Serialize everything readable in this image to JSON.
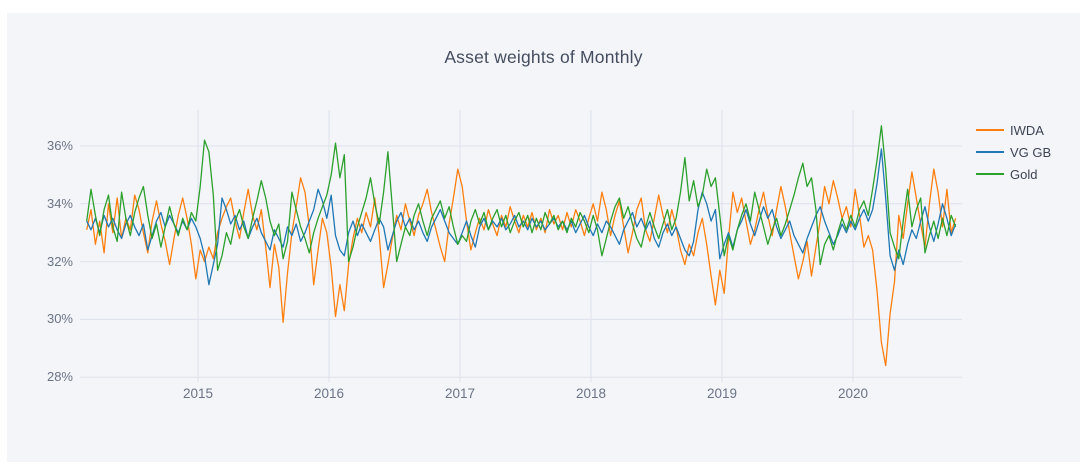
{
  "canvas": {
    "page_bg": "#ffffff",
    "card_bg": "#f3f5f9"
  },
  "chart_data": {
    "type": "line",
    "title": "Asset weights of Monthly",
    "grid": true,
    "legend_position": "right",
    "colors": {
      "grid": "#dee2ea",
      "tick_text": "#6b7485",
      "title_text": "#444d5f"
    },
    "x_axis": {
      "label": "",
      "tick_values": [
        2015,
        2016,
        2017,
        2018,
        2019,
        2020
      ],
      "tick_labels": [
        "2015",
        "2016",
        "2017",
        "2018",
        "2019",
        "2020"
      ],
      "range": [
        2014.1,
        2020.84
      ]
    },
    "y_axis": {
      "label": "",
      "unit": "%",
      "tick_values": [
        36,
        34,
        32,
        30,
        28
      ],
      "tick_labels": [
        "36%",
        "34%",
        "32%",
        "30%",
        "28%"
      ],
      "range": [
        27.5,
        37.3
      ]
    },
    "x_start": 2014.15,
    "x_step": 0.033333,
    "series": [
      {
        "name": "IWDA",
        "color": "#ff7f0e",
        "values": [
          33.1,
          33.8,
          32.6,
          33.4,
          32.3,
          34.0,
          33.0,
          34.2,
          32.8,
          33.5,
          33.1,
          34.3,
          33.8,
          33.0,
          32.3,
          33.4,
          34.1,
          33.3,
          32.7,
          31.9,
          32.8,
          33.6,
          34.2,
          33.5,
          32.6,
          31.4,
          32.4,
          32.0,
          32.5,
          32.1,
          33.0,
          33.5,
          33.9,
          34.2,
          33.4,
          32.8,
          33.7,
          34.5,
          33.6,
          33.1,
          33.8,
          32.5,
          31.1,
          32.6,
          31.8,
          29.9,
          31.6,
          33.0,
          33.9,
          34.9,
          34.4,
          33.2,
          31.2,
          32.4,
          33.5,
          33.0,
          31.8,
          30.1,
          31.2,
          30.3,
          31.9,
          32.8,
          33.5,
          33.0,
          33.7,
          33.2,
          34.2,
          32.9,
          31.1,
          31.9,
          32.8,
          33.6,
          33.1,
          34.0,
          33.4,
          32.9,
          33.6,
          34.0,
          34.5,
          33.7,
          33.1,
          32.5,
          32.0,
          33.3,
          34.2,
          35.2,
          34.6,
          33.4,
          32.4,
          33.0,
          33.5,
          33.1,
          33.8,
          33.3,
          32.9,
          33.6,
          33.2,
          33.9,
          33.4,
          33.0,
          33.6,
          33.2,
          33.7,
          33.1,
          33.5,
          33.0,
          33.8,
          33.3,
          33.6,
          33.1,
          33.7,
          33.2,
          33.8,
          33.4,
          32.9,
          33.5,
          34.0,
          33.4,
          34.4,
          33.8,
          32.9,
          33.6,
          34.1,
          33.2,
          32.3,
          33.0,
          33.8,
          34.2,
          33.1,
          32.7,
          33.5,
          34.3,
          33.6,
          33.0,
          33.8,
          33.2,
          32.4,
          31.9,
          32.6,
          32.2,
          33.0,
          33.5,
          32.6,
          31.5,
          30.5,
          31.7,
          30.9,
          32.8,
          34.4,
          33.7,
          34.2,
          33.4,
          32.6,
          33.1,
          33.8,
          34.4,
          33.6,
          32.9,
          33.8,
          34.6,
          33.9,
          33.0,
          32.2,
          31.4,
          32.0,
          32.7,
          31.5,
          32.5,
          33.4,
          34.6,
          34.0,
          34.8,
          34.2,
          33.5,
          33.9,
          33.2,
          34.5,
          33.6,
          32.5,
          32.9,
          32.4,
          31.0,
          29.2,
          28.4,
          30.2,
          31.3,
          33.6,
          32.8,
          34.0,
          35.1,
          34.2,
          33.3,
          32.5,
          34.0,
          35.2,
          34.4,
          33.2,
          34.5,
          33.0,
          33.5
        ]
      },
      {
        "name": "VG GB",
        "color": "#1f77b4",
        "values": [
          33.4,
          33.1,
          33.5,
          33.0,
          33.6,
          33.2,
          33.5,
          33.1,
          32.8,
          33.3,
          33.6,
          33.2,
          32.9,
          33.3,
          32.4,
          32.9,
          33.4,
          33.7,
          33.2,
          33.6,
          33.3,
          33.0,
          33.4,
          33.1,
          33.5,
          33.2,
          32.8,
          32.2,
          31.2,
          31.9,
          32.6,
          34.2,
          33.8,
          33.3,
          33.6,
          33.1,
          33.4,
          32.8,
          33.2,
          33.5,
          33.0,
          32.7,
          32.4,
          33.1,
          32.8,
          32.5,
          33.2,
          32.9,
          33.3,
          32.7,
          33.0,
          33.4,
          33.8,
          34.5,
          34.1,
          33.5,
          34.3,
          32.9,
          32.4,
          32.2,
          33.0,
          33.4,
          32.9,
          33.3,
          33.0,
          32.7,
          33.1,
          33.5,
          33.2,
          32.4,
          32.9,
          33.4,
          33.7,
          33.2,
          33.5,
          33.1,
          33.4,
          33.0,
          32.7,
          33.2,
          33.5,
          33.8,
          33.4,
          33.0,
          32.8,
          32.6,
          33.0,
          33.4,
          32.9,
          32.5,
          33.2,
          33.5,
          33.1,
          33.4,
          33.2,
          33.5,
          33.1,
          33.3,
          33.6,
          33.2,
          33.4,
          33.1,
          33.5,
          33.2,
          33.4,
          33.1,
          33.3,
          33.5,
          33.2,
          33.4,
          33.1,
          33.4,
          33.0,
          33.3,
          33.6,
          33.2,
          32.9,
          33.3,
          33.0,
          33.4,
          33.2,
          32.9,
          32.6,
          33.1,
          33.4,
          33.7,
          33.2,
          33.5,
          33.1,
          33.4,
          32.8,
          32.5,
          33.0,
          33.3,
          32.9,
          33.2,
          32.8,
          32.4,
          32.2,
          32.7,
          33.8,
          34.4,
          34.0,
          33.4,
          33.8,
          32.1,
          32.6,
          33.0,
          32.5,
          33.1,
          33.4,
          33.8,
          33.3,
          32.9,
          33.4,
          33.9,
          33.5,
          33.8,
          33.2,
          32.8,
          33.1,
          33.4,
          32.9,
          32.6,
          32.3,
          32.8,
          33.2,
          33.6,
          33.9,
          33.4,
          33.0,
          32.6,
          32.9,
          33.3,
          33.0,
          33.4,
          33.1,
          33.5,
          33.8,
          33.4,
          33.8,
          34.7,
          35.9,
          34.2,
          32.2,
          31.7,
          32.4,
          31.9,
          32.6,
          33.1,
          32.8,
          33.4,
          33.9,
          33.2,
          32.7,
          33.3,
          34.0,
          33.5,
          32.9,
          33.3
        ]
      },
      {
        "name": "Gold",
        "color": "#2ca02c",
        "values": [
          33.4,
          34.5,
          33.6,
          32.9,
          33.8,
          34.3,
          33.2,
          32.7,
          34.4,
          33.5,
          32.9,
          33.7,
          34.2,
          34.6,
          33.6,
          32.8,
          33.3,
          32.5,
          33.2,
          33.9,
          33.3,
          32.9,
          33.5,
          33.1,
          33.7,
          33.4,
          34.6,
          36.2,
          35.8,
          34.3,
          31.7,
          32.2,
          33.0,
          32.6,
          33.4,
          33.8,
          33.2,
          32.8,
          33.5,
          34.1,
          34.8,
          34.2,
          33.4,
          32.9,
          33.3,
          32.1,
          32.7,
          34.4,
          33.8,
          33.2,
          32.8,
          32.3,
          33.0,
          33.5,
          33.9,
          34.3,
          35.0,
          36.1,
          34.9,
          35.7,
          32.0,
          32.5,
          33.2,
          33.7,
          34.2,
          34.9,
          34.0,
          33.3,
          34.4,
          35.8,
          33.9,
          32.0,
          32.6,
          33.2,
          32.9,
          33.6,
          34.0,
          33.4,
          32.9,
          33.5,
          33.8,
          34.1,
          33.5,
          33.9,
          33.2,
          32.6,
          32.9,
          32.7,
          33.4,
          33.8,
          33.3,
          33.7,
          33.1,
          33.5,
          33.8,
          33.2,
          33.6,
          33.0,
          33.4,
          33.7,
          33.2,
          33.6,
          33.0,
          33.5,
          33.1,
          33.7,
          33.3,
          33.6,
          33.1,
          33.4,
          33.0,
          33.5,
          33.2,
          33.7,
          33.4,
          33.0,
          33.6,
          33.1,
          32.2,
          32.8,
          33.4,
          33.9,
          34.2,
          33.5,
          33.9,
          33.3,
          32.8,
          32.5,
          33.2,
          33.7,
          33.2,
          32.8,
          33.3,
          33.8,
          33.1,
          33.5,
          34.4,
          35.6,
          34.1,
          34.8,
          33.9,
          34.3,
          35.2,
          34.6,
          34.9,
          33.6,
          32.2,
          32.9,
          32.4,
          33.1,
          33.6,
          34.0,
          33.4,
          34.4,
          33.8,
          33.2,
          32.6,
          33.1,
          33.5,
          32.9,
          33.3,
          33.8,
          34.3,
          34.9,
          35.4,
          34.6,
          34.9,
          33.8,
          31.9,
          32.6,
          32.9,
          32.4,
          33.0,
          33.5,
          33.1,
          33.6,
          33.2,
          33.8,
          34.1,
          33.6,
          34.5,
          35.5,
          36.7,
          35.2,
          33.0,
          32.5,
          32.1,
          33.4,
          34.5,
          33.2,
          33.8,
          34.2,
          32.3,
          32.9,
          33.4,
          32.8,
          33.5,
          32.9,
          33.6,
          33.2
        ]
      }
    ]
  }
}
